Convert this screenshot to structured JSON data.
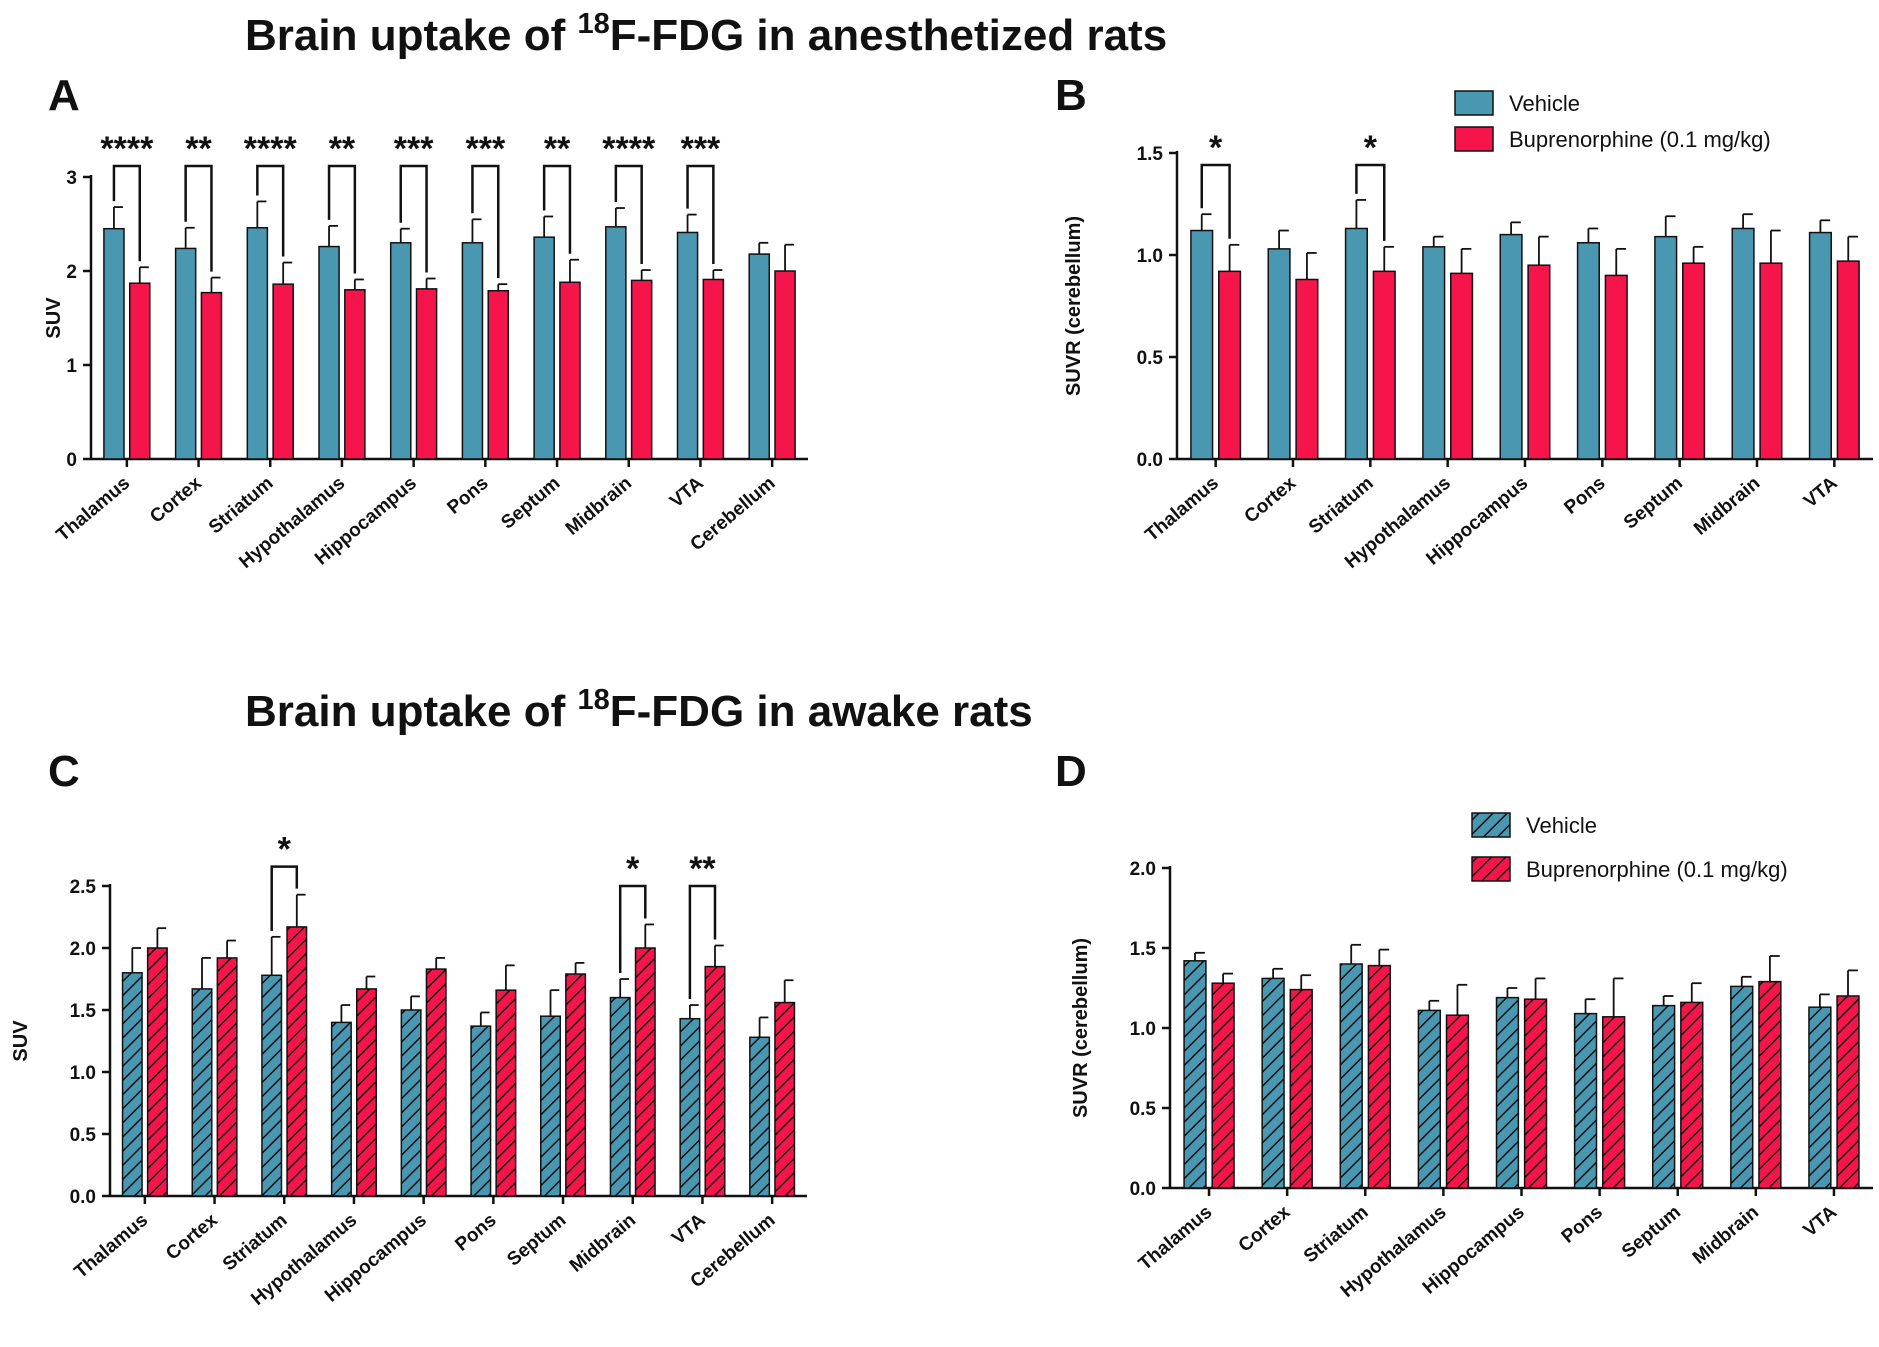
{
  "titles": {
    "top": {
      "prefix": "Brain uptake of ",
      "sup": "18",
      "suffix": "F-FDG  in anesthetized rats"
    },
    "bottom": {
      "prefix": "Brain uptake of ",
      "sup": "18",
      "suffix": "F-FDG  in awake rats"
    }
  },
  "colors": {
    "vehicle": "#4a97b2",
    "buprenorphine": "#f5154a",
    "ink": "#111111"
  },
  "chart_data": [
    {
      "panel": "A",
      "type": "bar",
      "pattern": "solid",
      "categories": [
        "Thalamus",
        "Cortex",
        "Striatum",
        "Hypothalamus",
        "Hippocampus",
        "Pons",
        "Septum",
        "Midbrain",
        "VTA",
        "Cerebellum"
      ],
      "ylabel": "SUV",
      "ylim": [
        0,
        3
      ],
      "yticks": [
        0,
        1,
        2,
        3
      ],
      "ytick_labels": [
        "0",
        "1",
        "2",
        "3"
      ],
      "series": [
        {
          "name": "Vehicle",
          "values": [
            2.45,
            2.24,
            2.46,
            2.26,
            2.3,
            2.3,
            2.36,
            2.47,
            2.41,
            2.18
          ],
          "errors": [
            0.23,
            0.22,
            0.28,
            0.22,
            0.15,
            0.25,
            0.22,
            0.2,
            0.19,
            0.12
          ]
        },
        {
          "name": "Buprenorphine (0.1 mg/kg)",
          "values": [
            1.87,
            1.77,
            1.86,
            1.8,
            1.81,
            1.79,
            1.88,
            1.9,
            1.91,
            2.0
          ],
          "errors": [
            0.17,
            0.16,
            0.23,
            0.11,
            0.11,
            0.07,
            0.24,
            0.11,
            0.1,
            0.28
          ]
        }
      ],
      "significance": [
        {
          "category": "Thalamus",
          "label": "****"
        },
        {
          "category": "Cortex",
          "label": "**"
        },
        {
          "category": "Striatum",
          "label": "****"
        },
        {
          "category": "Hypothalamus",
          "label": "**"
        },
        {
          "category": "Hippocampus",
          "label": "***"
        },
        {
          "category": "Pons",
          "label": "***"
        },
        {
          "category": "Septum",
          "label": "**"
        },
        {
          "category": "Midbrain",
          "label": "****"
        },
        {
          "category": "VTA",
          "label": "***"
        }
      ],
      "legend": []
    },
    {
      "panel": "B",
      "type": "bar",
      "pattern": "solid",
      "categories": [
        "Thalamus",
        "Cortex",
        "Striatum",
        "Hypothalamus",
        "Hippocampus",
        "Pons",
        "Septum",
        "Midbrain",
        "VTA"
      ],
      "ylabel": "SUVR (cerebellum)",
      "ylim": [
        0,
        1.5
      ],
      "yticks": [
        0,
        0.5,
        1.0,
        1.5
      ],
      "ytick_labels": [
        "0.0",
        "0.5",
        "1.0",
        "1.5"
      ],
      "series": [
        {
          "name": "Vehicle",
          "values": [
            1.12,
            1.03,
            1.13,
            1.04,
            1.1,
            1.06,
            1.09,
            1.13,
            1.11
          ],
          "errors": [
            0.08,
            0.09,
            0.14,
            0.05,
            0.06,
            0.07,
            0.1,
            0.07,
            0.06
          ]
        },
        {
          "name": "Buprenorphine (0.1 mg/kg)",
          "values": [
            0.92,
            0.88,
            0.92,
            0.91,
            0.95,
            0.9,
            0.96,
            0.96,
            0.97
          ],
          "errors": [
            0.13,
            0.13,
            0.12,
            0.12,
            0.14,
            0.13,
            0.08,
            0.16,
            0.12
          ]
        }
      ],
      "significance": [
        {
          "category": "Thalamus",
          "label": "*"
        },
        {
          "category": "Striatum",
          "label": "*"
        }
      ],
      "legend": [
        "Vehicle",
        "Buprenorphine (0.1 mg/kg)"
      ]
    },
    {
      "panel": "C",
      "type": "bar",
      "pattern": "hatched",
      "categories": [
        "Thalamus",
        "Cortex",
        "Striatum",
        "Hypothalamus",
        "Hippocampus",
        "Pons",
        "Septum",
        "Midbrain",
        "VTA",
        "Cerebellum"
      ],
      "ylabel": "SUV",
      "ylim": [
        0,
        2.5
      ],
      "yticks": [
        0,
        0.5,
        1.0,
        1.5,
        2.0,
        2.5
      ],
      "ytick_labels": [
        "0.0",
        "0.5",
        "1.0",
        "1.5",
        "2.0",
        "2.5"
      ],
      "series": [
        {
          "name": "Vehicle",
          "values": [
            1.8,
            1.67,
            1.78,
            1.4,
            1.5,
            1.37,
            1.45,
            1.6,
            1.43,
            1.28
          ],
          "errors": [
            0.2,
            0.25,
            0.31,
            0.14,
            0.11,
            0.11,
            0.21,
            0.15,
            0.11,
            0.16
          ]
        },
        {
          "name": "Buprenorphine (0.1 mg/kg)",
          "values": [
            2.0,
            1.92,
            2.17,
            1.67,
            1.83,
            1.66,
            1.79,
            2.0,
            1.85,
            1.56
          ],
          "errors": [
            0.16,
            0.14,
            0.26,
            0.1,
            0.09,
            0.2,
            0.09,
            0.19,
            0.17,
            0.18
          ]
        }
      ],
      "significance": [
        {
          "category": "Striatum",
          "label": "*"
        },
        {
          "category": "Midbrain",
          "label": "*"
        },
        {
          "category": "VTA",
          "label": "**"
        }
      ],
      "legend": []
    },
    {
      "panel": "D",
      "type": "bar",
      "pattern": "hatched",
      "categories": [
        "Thalamus",
        "Cortex",
        "Striatum",
        "Hypothalamus",
        "Hippocampus",
        "Pons",
        "Septum",
        "Midbrain",
        "VTA"
      ],
      "ylabel": "SUVR (cerebellum)",
      "ylim": [
        0,
        2.0
      ],
      "yticks": [
        0,
        0.5,
        1.0,
        1.5,
        2.0
      ],
      "ytick_labels": [
        "0.0",
        "0.5",
        "1.0",
        "1.5",
        "2.0"
      ],
      "series": [
        {
          "name": "Vehicle",
          "values": [
            1.42,
            1.31,
            1.4,
            1.11,
            1.19,
            1.09,
            1.14,
            1.26,
            1.13
          ],
          "errors": [
            0.05,
            0.06,
            0.12,
            0.06,
            0.06,
            0.09,
            0.06,
            0.06,
            0.08
          ]
        },
        {
          "name": "Buprenorphine (0.1 mg/kg)",
          "values": [
            1.28,
            1.24,
            1.39,
            1.08,
            1.18,
            1.07,
            1.16,
            1.29,
            1.2
          ],
          "errors": [
            0.06,
            0.09,
            0.1,
            0.19,
            0.13,
            0.24,
            0.12,
            0.16,
            0.16
          ]
        }
      ],
      "significance": [],
      "legend": [
        "Vehicle",
        "Buprenorphine (0.1 mg/kg)"
      ]
    }
  ]
}
